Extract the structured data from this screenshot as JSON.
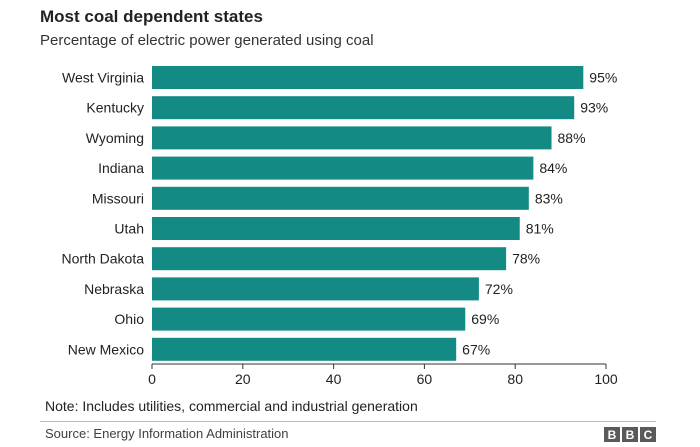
{
  "header": {
    "title": "Most coal dependent states",
    "subtitle": "Percentage of electric power generated using coal"
  },
  "chart_data": {
    "type": "bar",
    "orientation": "horizontal",
    "categories": [
      "West Virginia",
      "Kentucky",
      "Wyoming",
      "Indiana",
      "Missouri",
      "Utah",
      "North Dakota",
      "Nebraska",
      "Ohio",
      "New Mexico"
    ],
    "values": [
      95,
      93,
      88,
      84,
      83,
      81,
      78,
      72,
      69,
      67
    ],
    "value_labels": [
      "95%",
      "93%",
      "88%",
      "84%",
      "83%",
      "81%",
      "78%",
      "72%",
      "69%",
      "67%"
    ],
    "x_ticks": [
      "0",
      "20",
      "40",
      "60",
      "80",
      "100"
    ],
    "xlim": [
      0,
      100
    ],
    "bar_color": "#138a83",
    "grid": false
  },
  "footer": {
    "note": "Note: Includes utilities, commercial and industrial generation",
    "source": "Source: Energy Information Administration",
    "logo": [
      "B",
      "B",
      "C"
    ]
  },
  "colors": {
    "bar": "#138a83",
    "axis": "#333333",
    "text": "#222222",
    "logo_bg": "#5a5a5a"
  }
}
